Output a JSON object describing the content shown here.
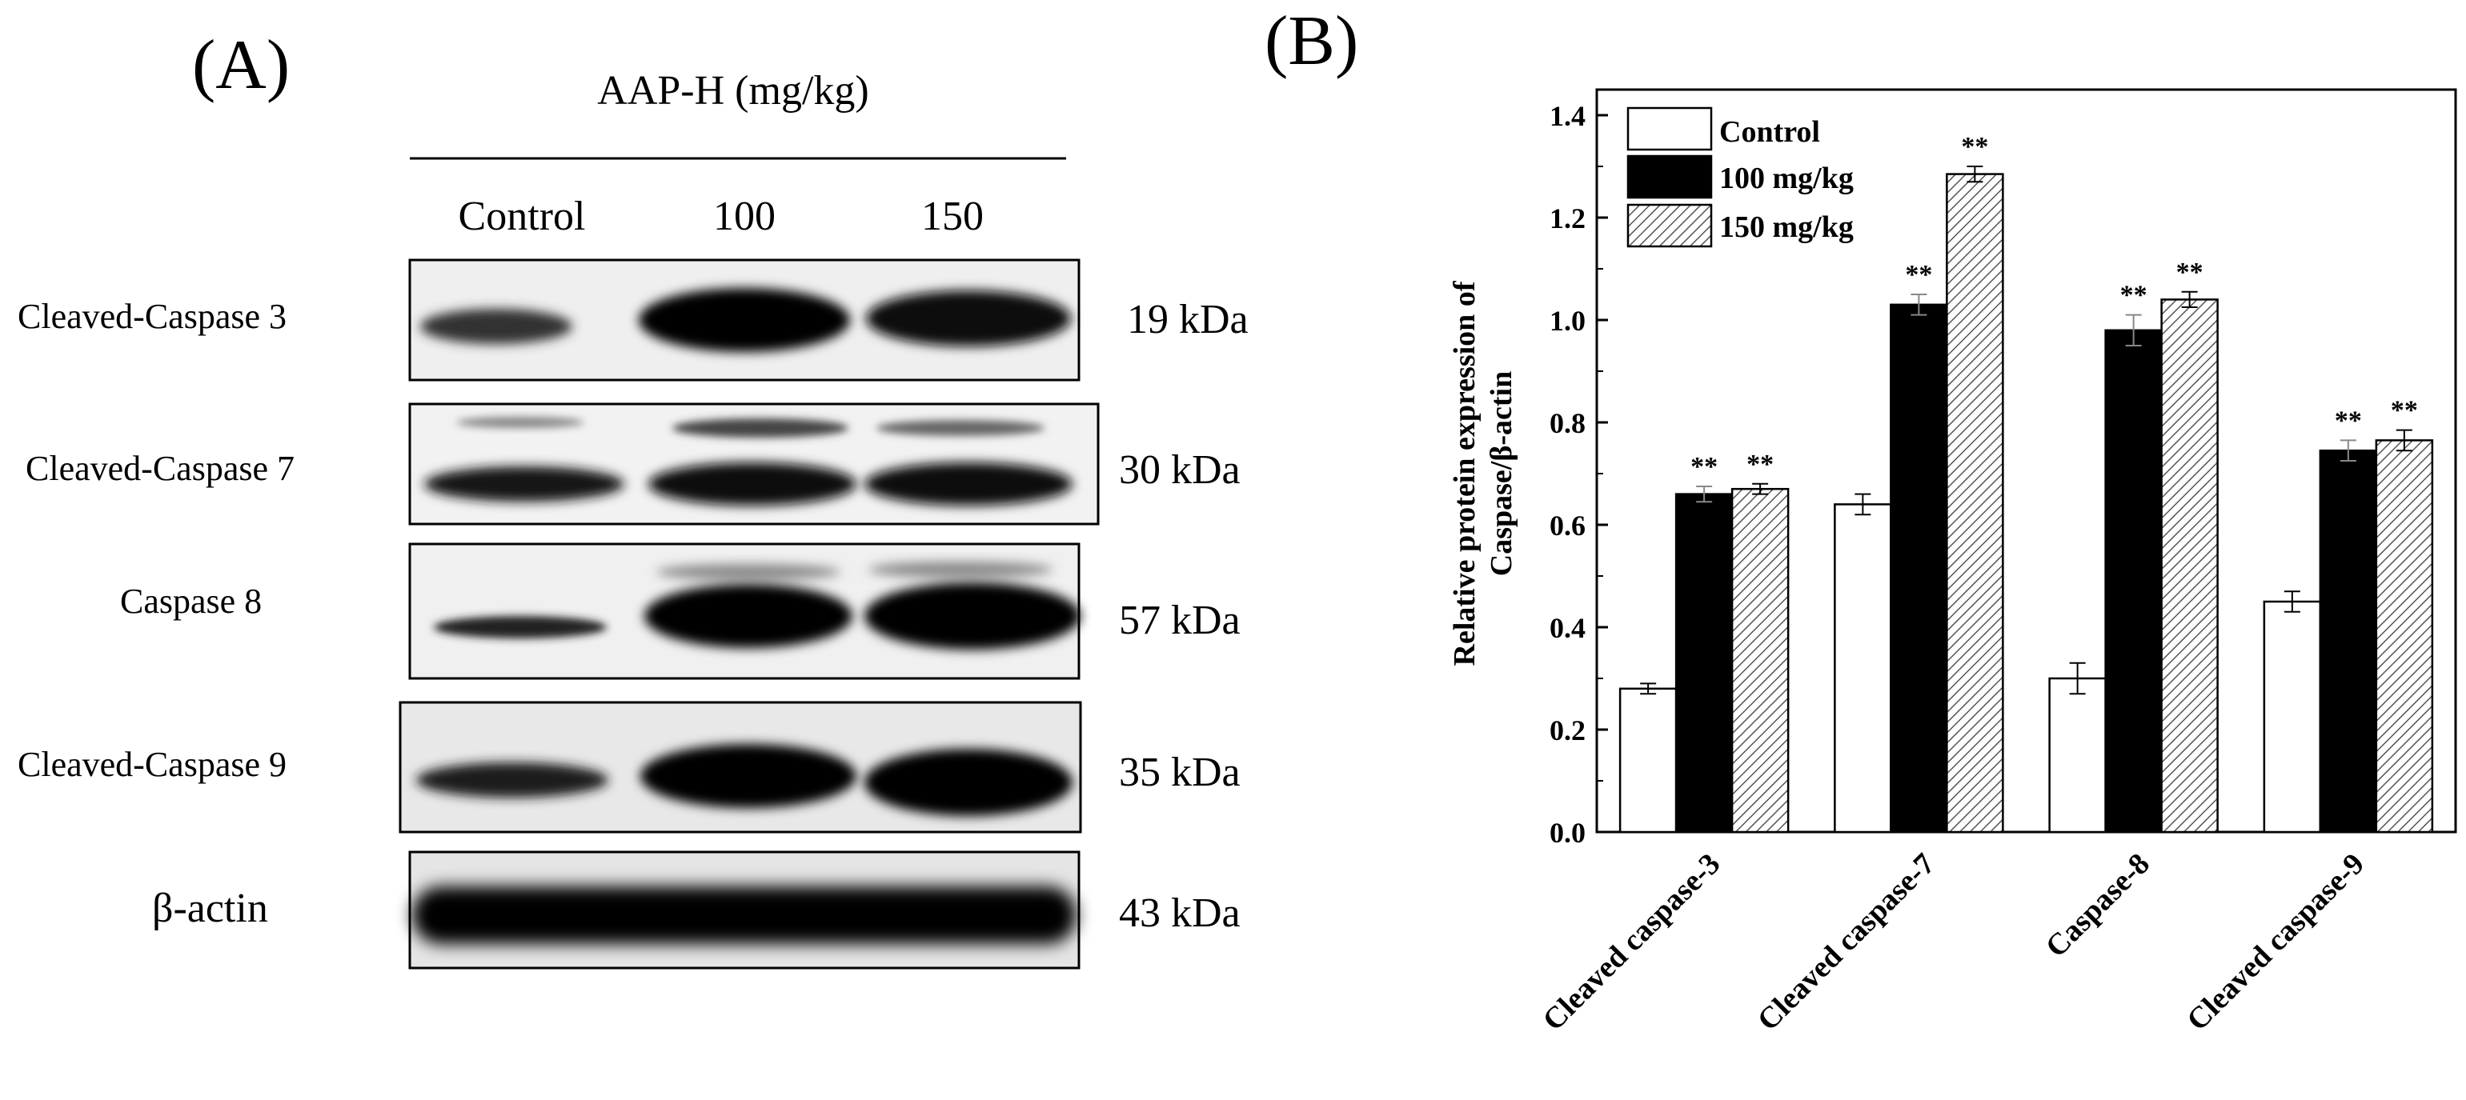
{
  "panel_a": {
    "label": "(A)",
    "treatment_header": "AAP-H (mg/kg)",
    "lanes": [
      "Control",
      "100",
      "150"
    ],
    "blots": [
      {
        "name": "Cleaved-Caspase 3",
        "kda": "19 kDa"
      },
      {
        "name": "Cleaved-Caspase 7",
        "kda": "30 kDa"
      },
      {
        "name": "Caspase 8",
        "kda": "57 kDa"
      },
      {
        "name": "Cleaved-Caspase 9",
        "kda": "35 kDa"
      },
      {
        "name": "β-actin",
        "kda": "43 kDa"
      }
    ]
  },
  "panel_b": {
    "label": "(B)",
    "significance_mark": "**"
  },
  "chart_data": {
    "type": "bar",
    "title": "",
    "ylabel": "Relative protein expression of Caspase/β-actin",
    "ylabel_lines": [
      "Relative protein expression of",
      "Caspase/β-actin"
    ],
    "xlabel": "",
    "categories": [
      "Cleaved caspase-3",
      "Cleaved caspase-7",
      "Caspase-8",
      "Cleaved caspase-9"
    ],
    "series": [
      {
        "name": "Control",
        "values": [
          0.28,
          0.64,
          0.3,
          0.45
        ],
        "errors": [
          0.01,
          0.02,
          0.03,
          0.02
        ],
        "fill": "white",
        "significance": [
          "",
          "",
          "",
          ""
        ]
      },
      {
        "name": "100 mg/kg",
        "values": [
          0.66,
          1.03,
          0.98,
          0.745
        ],
        "errors": [
          0.015,
          0.02,
          0.03,
          0.02
        ],
        "fill": "black",
        "significance": [
          "**",
          "**",
          "**",
          "**"
        ]
      },
      {
        "name": "150 mg/kg",
        "values": [
          0.67,
          1.285,
          1.04,
          0.765
        ],
        "errors": [
          0.01,
          0.015,
          0.015,
          0.02
        ],
        "fill": "hatched",
        "significance": [
          "**",
          "**",
          "**",
          "**"
        ]
      }
    ],
    "ylim": [
      0,
      1.45
    ],
    "yticks": [
      "0.0",
      "0.2",
      "0.4",
      "0.6",
      "0.8",
      "1.0",
      "1.2",
      "1.4"
    ],
    "legend_position": "top-left",
    "grid": false
  }
}
